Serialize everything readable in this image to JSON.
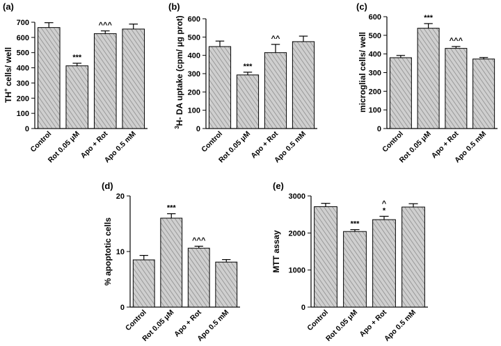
{
  "chart_data": [
    {
      "type": "bar",
      "panel_label": "(a)",
      "ylabel": "TH+ cells/ well",
      "categories": [
        "Control",
        "Rot 0.05 μM",
        "Apo + Rot",
        "Apo 0.5 mM"
      ],
      "values": [
        665,
        413,
        625,
        655
      ],
      "errors": [
        32,
        17,
        18,
        33
      ],
      "annotations": [
        "",
        "***",
        "^^^",
        ""
      ],
      "ylim": [
        0,
        700
      ],
      "yticks": [
        0,
        100,
        200,
        300,
        400,
        500,
        600,
        700
      ]
    },
    {
      "type": "bar",
      "panel_label": "(b)",
      "ylabel": "3H- DA uptake (cpm/ μg prot)",
      "categories": [
        "Control",
        "Rot 0.05 μM",
        "Apo + Rot",
        "Apo 0.5 mM"
      ],
      "values": [
        448,
        293,
        415,
        475
      ],
      "errors": [
        30,
        15,
        45,
        30
      ],
      "annotations": [
        "",
        "***",
        "^^",
        ""
      ],
      "ylim": [
        0,
        600
      ],
      "yticks": [
        0,
        100,
        200,
        300,
        400,
        500,
        600
      ]
    },
    {
      "type": "bar",
      "panel_label": "(c)",
      "ylabel": "microglial cells/ well",
      "categories": [
        "Control",
        "Rot 0.05 μM",
        "Apo + Rot",
        "Apo 0.5 mM"
      ],
      "values": [
        380,
        538,
        430,
        373
      ],
      "errors": [
        12,
        25,
        10,
        8
      ],
      "annotations": [
        "",
        "***",
        "^^^",
        ""
      ],
      "ylim": [
        0,
        600
      ],
      "yticks": [
        0,
        100,
        200,
        300,
        400,
        500,
        600
      ]
    },
    {
      "type": "bar",
      "panel_label": "(d)",
      "ylabel": "% apoptotic cells",
      "categories": [
        "Control",
        "Rot 0.05 μM",
        "Apo + Rot",
        "Apo 0.5 mM"
      ],
      "values": [
        8.5,
        16.0,
        10.6,
        8.1
      ],
      "errors": [
        0.8,
        0.8,
        0.35,
        0.45
      ],
      "annotations": [
        "",
        "***",
        "^^^",
        ""
      ],
      "ylim": [
        0,
        20
      ],
      "yticks": [
        0,
        10,
        20
      ]
    },
    {
      "type": "bar",
      "panel_label": "(e)",
      "ylabel": "MTT assay",
      "categories": [
        "Control",
        "Rot 0.05 μM",
        "Apo + Rot",
        "Apo 0.5 mM"
      ],
      "values": [
        2710,
        2040,
        2360,
        2700
      ],
      "errors": [
        90,
        50,
        90,
        90
      ],
      "annotations": [
        "",
        "***",
        "^\n*",
        ""
      ],
      "ylim": [
        0,
        3000
      ],
      "yticks": [
        0,
        1000,
        2000,
        3000
      ]
    }
  ]
}
